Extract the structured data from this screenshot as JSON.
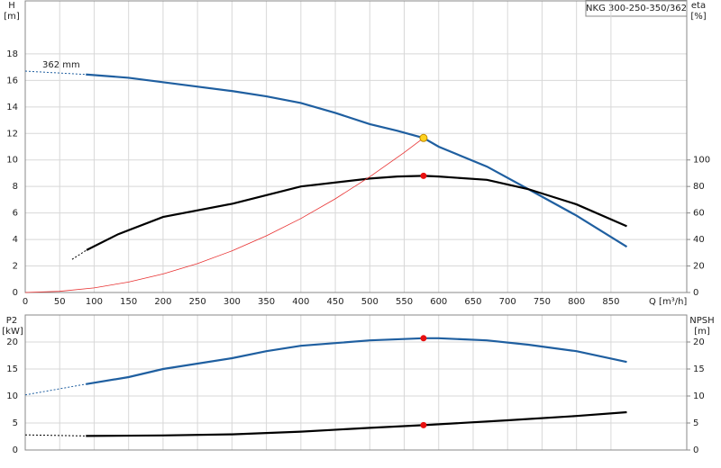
{
  "chart_data": [
    {
      "type": "line",
      "title": "NKG 300-250-350/362",
      "annotation": "362 mm",
      "ylabel": "H",
      "yunit": "[m]",
      "y2label": "eta",
      "y2unit": "[%]",
      "xlabel": "Q [m³/h]",
      "xlim": [
        0,
        960
      ],
      "xticks": [
        0,
        50,
        100,
        150,
        200,
        250,
        300,
        350,
        400,
        450,
        500,
        550,
        600,
        650,
        700,
        750,
        800,
        850
      ],
      "ylim": [
        0,
        22
      ],
      "yticks": [
        0,
        2,
        4,
        6,
        8,
        10,
        12,
        14,
        16,
        18
      ],
      "y2lim": [
        0,
        220
      ],
      "y2ticks": [
        0,
        20,
        40,
        60,
        80,
        100
      ],
      "grid": true,
      "xtick_labels": true,
      "series": [
        {
          "color": "#1f5fa0",
          "dashed": true,
          "width": 1,
          "x": [
            0,
            88
          ],
          "values": [
            16.7,
            16.45
          ]
        },
        {
          "color": "#1f5fa0",
          "dashed": false,
          "width": 2.2,
          "x": [
            88,
            150,
            225,
            300,
            350,
            400,
            450,
            500,
            540,
            578,
            600,
            670,
            730,
            800,
            873
          ],
          "values": [
            16.45,
            16.2,
            15.7,
            15.2,
            14.8,
            14.3,
            13.55,
            12.7,
            12.2,
            11.66,
            11.0,
            9.5,
            7.8,
            5.8,
            3.45
          ]
        },
        {
          "color": "#000000",
          "dashed": true,
          "width": 1,
          "axis": "y2",
          "x": [
            68,
            89
          ],
          "values": [
            25,
            32
          ]
        },
        {
          "color": "#000000",
          "dashed": false,
          "width": 2.2,
          "axis": "y2",
          "x": [
            89,
            135,
            200,
            301,
            400,
            500,
            540,
            578,
            600,
            670,
            730,
            800,
            873
          ],
          "values": [
            32,
            44,
            57,
            67,
            80,
            86,
            87.5,
            88,
            87.5,
            85,
            78,
            66.5,
            50
          ]
        },
        {
          "color": "#e83030",
          "dashed": false,
          "width": 0.8,
          "x": [
            0,
            50,
            100,
            150,
            200,
            250,
            300,
            350,
            400,
            450,
            500,
            550,
            578
          ],
          "values": [
            0,
            0.09,
            0.35,
            0.79,
            1.4,
            2.18,
            3.14,
            4.28,
            5.58,
            7.07,
            8.73,
            10.56,
            11.66
          ]
        }
      ],
      "markers": [
        {
          "x": 578,
          "y": 11.66,
          "color": "#ffd21e",
          "stroke": "#c08a00",
          "size": 4
        },
        {
          "x": 578,
          "y": 88,
          "axis": "y2",
          "color": "#e81010",
          "stroke": "#e81010",
          "size": 3
        }
      ]
    },
    {
      "type": "line",
      "ylabel": "P2",
      "yunit": "[kW]",
      "y2label": "NPSH",
      "y2unit": "[m]",
      "xlim": [
        0,
        960
      ],
      "xticks": [
        0,
        50,
        100,
        150,
        200,
        250,
        300,
        350,
        400,
        450,
        500,
        550,
        600,
        650,
        700,
        750,
        800,
        850
      ],
      "ylim": [
        0,
        25
      ],
      "yticks": [
        0,
        5,
        10,
        15,
        20
      ],
      "y2lim": [
        0,
        25
      ],
      "y2ticks": [
        0,
        5,
        10,
        15,
        20
      ],
      "grid": true,
      "xtick_labels": false,
      "series": [
        {
          "color": "#1f5fa0",
          "dashed": true,
          "width": 1,
          "x": [
            0,
            88
          ],
          "values": [
            10.2,
            12.2
          ]
        },
        {
          "color": "#1f5fa0",
          "dashed": false,
          "width": 2.2,
          "x": [
            88,
            150,
            200,
            300,
            350,
            400,
            500,
            578,
            600,
            670,
            730,
            800,
            873
          ],
          "values": [
            12.2,
            13.5,
            15,
            17,
            18.3,
            19.3,
            20.3,
            20.7,
            20.7,
            20.3,
            19.5,
            18.3,
            16.3
          ]
        },
        {
          "color": "#000000",
          "dashed": true,
          "width": 1,
          "axis": "y2",
          "x": [
            0,
            88
          ],
          "values": [
            2.8,
            2.6
          ]
        },
        {
          "color": "#000000",
          "dashed": false,
          "width": 2.2,
          "axis": "y2",
          "x": [
            88,
            200,
            300,
            400,
            500,
            578,
            700,
            800,
            873
          ],
          "values": [
            2.6,
            2.7,
            2.9,
            3.4,
            4.1,
            4.6,
            5.5,
            6.3,
            7.0
          ]
        }
      ],
      "markers": [
        {
          "x": 578,
          "y": 20.7,
          "color": "#e81010",
          "stroke": "#e81010",
          "size": 3
        },
        {
          "x": 578,
          "y": 4.6,
          "axis": "y2",
          "color": "#e81010",
          "stroke": "#e81010",
          "size": 3
        }
      ]
    }
  ]
}
